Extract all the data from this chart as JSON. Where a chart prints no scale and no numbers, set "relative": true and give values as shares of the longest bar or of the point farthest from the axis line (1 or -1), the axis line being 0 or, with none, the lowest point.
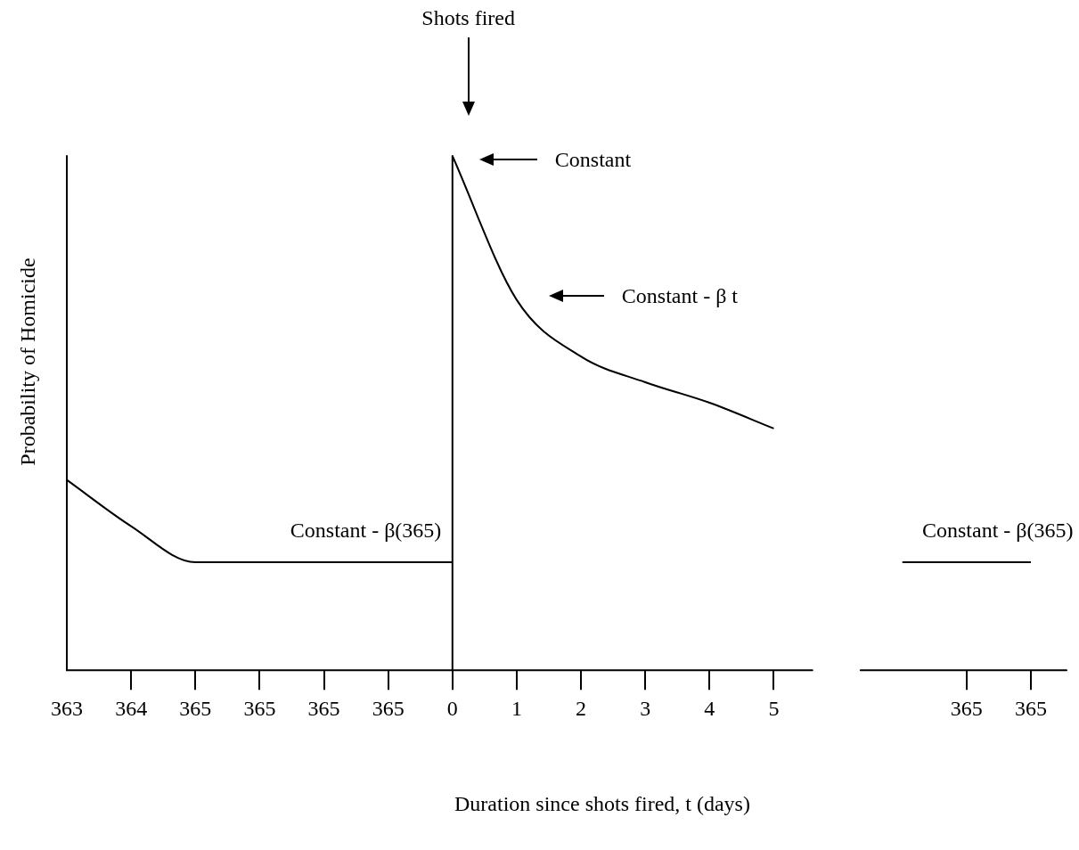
{
  "chart_data": {
    "type": "line",
    "relative": true,
    "xlabel": "Duration since shots fired,  t (days)",
    "ylabel": "Probability of Homicide",
    "categories": [
      "363",
      "364",
      "365",
      "365",
      "365",
      "365",
      "0",
      "1",
      "2",
      "3",
      "4",
      "5",
      null,
      null,
      "365",
      "365"
    ],
    "series": [
      {
        "color": "#000000",
        "values": [
          0.37,
          0.28,
          0.21,
          0.21,
          0.21,
          0.21,
          0.21,
          null,
          null,
          null,
          null,
          null,
          null,
          null,
          null,
          null
        ]
      },
      {
        "color": "#000000",
        "values": [
          null,
          null,
          null,
          null,
          null,
          null,
          1.0,
          0.72,
          0.61,
          0.56,
          0.52,
          0.47,
          null,
          null,
          null,
          null
        ]
      },
      {
        "color": "#000000",
        "values": [
          null,
          null,
          null,
          null,
          null,
          null,
          null,
          null,
          null,
          null,
          null,
          null,
          null,
          0.21,
          0.21,
          0.21
        ]
      }
    ],
    "ref_lines": [
      {
        "axis": "x",
        "value": "363",
        "color": "#000000"
      },
      {
        "axis": "x",
        "value": "0",
        "color": "#000000"
      }
    ],
    "annotations": [
      "Shots fired",
      "Constant",
      "Constant - β t",
      "Constant - β(365)",
      "Constant - β(365)"
    ],
    "grid": false,
    "legend": false,
    "marker": "none",
    "line_style": "solid"
  }
}
